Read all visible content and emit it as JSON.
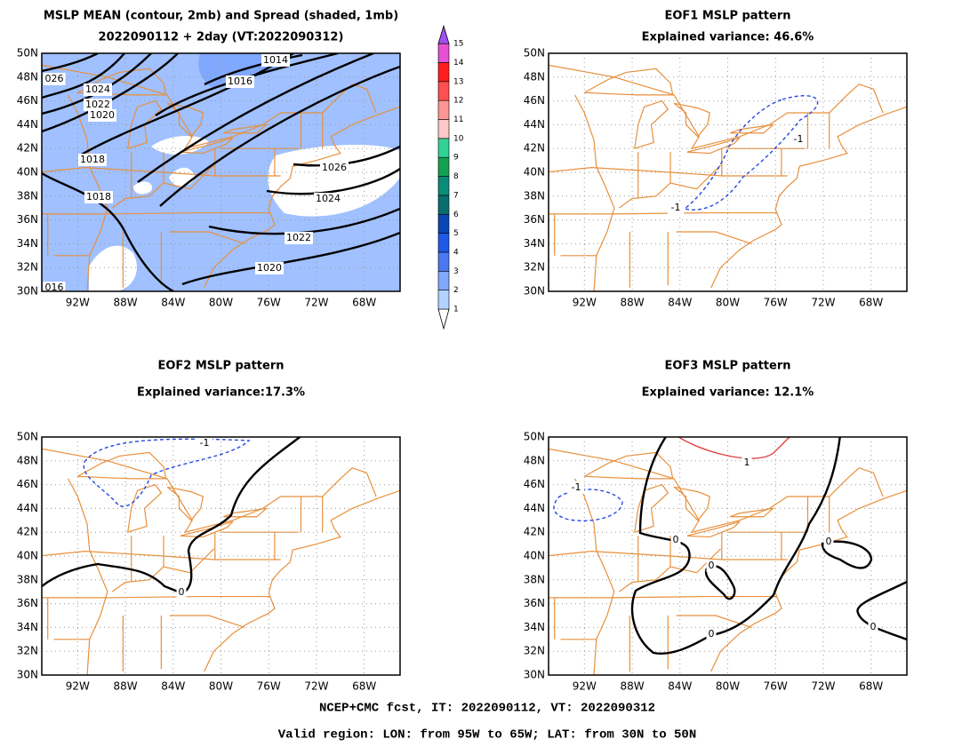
{
  "panels": [
    {
      "title": "MSLP MEAN (contour, 2mb) and Spread (shaded, 1mb)",
      "subtitle": "2022090112 + 2day (VT:2022090312)",
      "lat_ticks": [
        "30N",
        "32N",
        "34N",
        "36N",
        "38N",
        "40N",
        "42N",
        "44N",
        "46N",
        "48N",
        "50N"
      ],
      "lon_ticks": [
        "92W",
        "88W",
        "84W",
        "80W",
        "76W",
        "72W",
        "68W"
      ],
      "contour_labels": [
        "1014",
        "1016",
        "1024",
        "1022",
        "1020",
        "1018",
        "1018",
        "1026",
        "1024",
        "1022",
        "1020",
        "026",
        "016"
      ]
    },
    {
      "title": "EOF1 MSLP pattern",
      "subtitle": "Explained variance: 46.6%",
      "lat_ticks": [
        "30N",
        "32N",
        "34N",
        "36N",
        "38N",
        "40N",
        "42N",
        "44N",
        "46N",
        "48N",
        "50N"
      ],
      "lon_ticks": [
        "92W",
        "88W",
        "84W",
        "80W",
        "76W",
        "72W",
        "68W"
      ],
      "contour_labels": [
        "-1",
        "-1"
      ]
    },
    {
      "title": "EOF2 MSLP pattern",
      "subtitle": "Explained variance:17.3%",
      "lat_ticks": [
        "30N",
        "32N",
        "34N",
        "36N",
        "38N",
        "40N",
        "42N",
        "44N",
        "46N",
        "48N",
        "50N"
      ],
      "lon_ticks": [
        "92W",
        "88W",
        "84W",
        "80W",
        "76W",
        "72W",
        "68W"
      ],
      "contour_labels": [
        "-1",
        "0"
      ]
    },
    {
      "title": "EOF3 MSLP pattern",
      "subtitle": "Explained variance: 12.1%",
      "lat_ticks": [
        "30N",
        "32N",
        "34N",
        "36N",
        "38N",
        "40N",
        "42N",
        "44N",
        "46N",
        "48N",
        "50N"
      ],
      "lon_ticks": [
        "92W",
        "88W",
        "84W",
        "80W",
        "76W",
        "72W",
        "68W"
      ],
      "contour_labels": [
        "1",
        "-1",
        "0",
        "0",
        "0",
        "0",
        "0"
      ]
    }
  ],
  "colorbar": {
    "labels": [
      1,
      2,
      3,
      4,
      5,
      6,
      7,
      8,
      9,
      10,
      11,
      12,
      13,
      14,
      15
    ],
    "colors": [
      "#ffffff",
      "#b4d2ff",
      "#80a8ff",
      "#4b78f0",
      "#1e5ae6",
      "#0a46b4",
      "#0a6e6e",
      "#0a8c78",
      "#14a050",
      "#32d296",
      "#ffc8c8",
      "#ff9696",
      "#ff5050",
      "#ff1e1e",
      "#e650d2",
      "#a050f0"
    ]
  },
  "footer": [
    "NCEP+CMC fcst, IT: 2022090112, VT: 2022090312",
    "Valid region: LON: from 95W to 65W; LAT: from 30N to 50N"
  ]
}
